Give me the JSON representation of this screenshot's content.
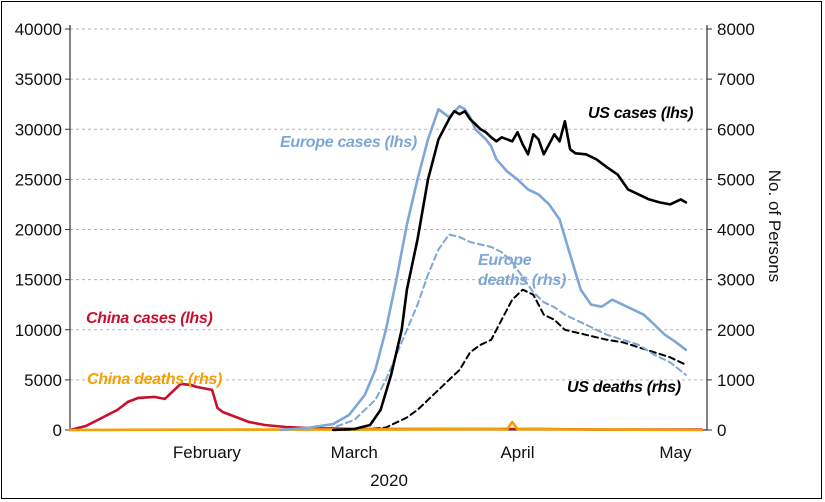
{
  "chart_data": {
    "type": "line",
    "x_period_label": "2020",
    "x_month_ticks": [
      "February",
      "March",
      "April",
      "May"
    ],
    "x_month_tick_days": [
      36,
      64,
      95,
      125
    ],
    "y_left": {
      "range": [
        0,
        40000
      ],
      "ticks": [
        0,
        5000,
        10000,
        15000,
        20000,
        25000,
        30000,
        35000,
        40000
      ]
    },
    "y_right": {
      "label": "No. of Persons",
      "range": [
        0,
        8000
      ],
      "ticks": [
        0,
        1000,
        2000,
        3000,
        4000,
        5000,
        6000,
        7000,
        8000
      ]
    },
    "grid": "horizontal dashed",
    "series": [
      {
        "name": "China cases (lhs)",
        "axis": "left",
        "style": "solid",
        "color": "#c8102e",
        "x": [
          10,
          13,
          16,
          19,
          21,
          23,
          26,
          28,
          31,
          33,
          34,
          37,
          38,
          39,
          41,
          44,
          47,
          51,
          55,
          60,
          65,
          80,
          100,
          110,
          130
        ],
        "y": [
          0,
          400,
          1200,
          2000,
          2800,
          3200,
          3300,
          3100,
          4600,
          4500,
          4300,
          4000,
          2200,
          1800,
          1400,
          800,
          500,
          300,
          200,
          150,
          100,
          100,
          100,
          50,
          50
        ]
      },
      {
        "name": "China deaths (rhs)",
        "axis": "right",
        "style": "solid",
        "color": "#f5a000",
        "x": [
          10,
          30,
          60,
          90,
          93,
          94,
          95,
          110,
          130
        ],
        "y": [
          0,
          5,
          10,
          15,
          10,
          160,
          15,
          10,
          0
        ]
      },
      {
        "name": "Europe cases (lhs)",
        "axis": "right_scaled_left",
        "style": "solid",
        "color": "#7ea6d6",
        "x": [
          50,
          55,
          60,
          63,
          66,
          68,
          70,
          72,
          74,
          76,
          78,
          80,
          82,
          84,
          85,
          86,
          87,
          88,
          89,
          90,
          91,
          93,
          95,
          97,
          99,
          101,
          103,
          105,
          107,
          109,
          111,
          113,
          115,
          117,
          119,
          121,
          123,
          125,
          127
        ],
        "y": [
          0,
          200,
          600,
          1500,
          3500,
          6000,
          10000,
          15000,
          20500,
          25000,
          29000,
          32000,
          31200,
          32300,
          32000,
          31200,
          30000,
          29500,
          29000,
          28300,
          27000,
          25800,
          25000,
          24000,
          23500,
          22500,
          21000,
          17500,
          14000,
          12500,
          12300,
          13000,
          12500,
          12000,
          11500,
          10500,
          9500,
          8800,
          8000
        ]
      },
      {
        "name": "Europe deaths (rhs)",
        "axis": "right",
        "style": "dashed",
        "color": "#7ea6d6",
        "x": [
          55,
          60,
          64,
          66,
          68,
          70,
          72,
          74,
          76,
          78,
          80,
          82,
          84,
          86,
          88,
          90,
          92,
          94,
          96,
          98,
          100,
          102,
          104,
          106,
          108,
          110,
          112,
          115,
          118,
          121,
          124,
          127
        ],
        "y": [
          0,
          50,
          200,
          400,
          600,
          1000,
          1500,
          2000,
          2500,
          3100,
          3600,
          3900,
          3850,
          3750,
          3700,
          3650,
          3550,
          3350,
          3050,
          2750,
          2550,
          2450,
          2300,
          2200,
          2100,
          2000,
          1900,
          1800,
          1700,
          1500,
          1350,
          1100
        ]
      },
      {
        "name": "US cases (lhs)",
        "axis": "left",
        "style": "solid",
        "color": "#000000",
        "x": [
          60,
          64,
          67,
          69,
          71,
          73,
          74,
          76,
          78,
          80,
          82,
          83,
          84,
          85,
          86,
          87,
          88,
          89,
          90,
          91,
          92,
          93,
          94,
          95,
          96,
          97,
          98,
          99,
          100,
          101,
          102,
          103,
          104,
          105,
          106,
          108,
          110,
          112,
          114,
          116,
          118,
          120,
          122,
          124,
          126,
          127
        ],
        "y": [
          0,
          100,
          500,
          2000,
          5500,
          10000,
          14000,
          19000,
          25000,
          29000,
          31000,
          31800,
          31500,
          31800,
          31000,
          30500,
          30000,
          29700,
          29200,
          28800,
          29200,
          29000,
          28800,
          29700,
          28500,
          27500,
          29500,
          29000,
          27500,
          28500,
          29500,
          28800,
          30800,
          28000,
          27600,
          27500,
          27000,
          26200,
          25500,
          24000,
          23500,
          23000,
          22700,
          22500,
          23000,
          22700
        ]
      },
      {
        "name": "US deaths (rhs)",
        "axis": "right",
        "style": "dashed",
        "color": "#000000",
        "x": [
          62,
          66,
          70,
          72,
          74,
          76,
          78,
          80,
          82,
          84,
          86,
          88,
          90,
          92,
          94,
          96,
          98,
          100,
          102,
          104,
          106,
          108,
          110,
          112,
          115,
          118,
          121,
          124,
          127
        ],
        "y": [
          0,
          10,
          50,
          150,
          250,
          400,
          600,
          800,
          1000,
          1200,
          1550,
          1700,
          1800,
          2200,
          2600,
          2800,
          2700,
          2300,
          2200,
          2000,
          1950,
          1900,
          1850,
          1800,
          1750,
          1650,
          1550,
          1450,
          1300
        ]
      }
    ]
  }
}
